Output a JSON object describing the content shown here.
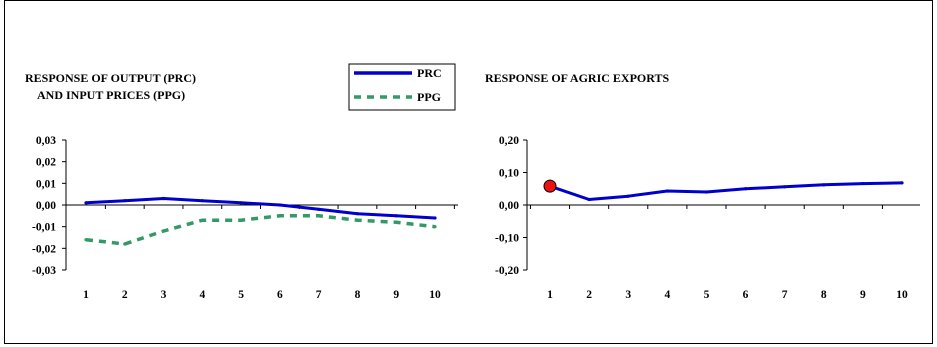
{
  "colors": {
    "prc": "#0000cc",
    "ppg": "#339966",
    "marker_fill": "#ee1111",
    "axis": "#000000"
  },
  "chart_data": [
    {
      "type": "line",
      "title_lines": [
        "RESPONSE OF OUTPUT (PRC)",
        "AND INPUT PRICES (PPG)"
      ],
      "categories": [
        "1",
        "2",
        "3",
        "4",
        "5",
        "6",
        "7",
        "8",
        "9",
        "10"
      ],
      "ylim": [
        -0.03,
        0.03
      ],
      "yticks": [
        0.03,
        0.02,
        0.01,
        0.0,
        -0.01,
        -0.02,
        -0.03
      ],
      "ytick_labels": [
        "0,03",
        "0,02",
        "0,01",
        "0,00",
        "-0,01",
        "-0,02",
        "-0,03"
      ],
      "legend": {
        "placement": "top-right",
        "entries": [
          "PRC",
          "PPG"
        ]
      },
      "series": [
        {
          "name": "PRC",
          "style": "solid",
          "values": [
            0.001,
            0.002,
            0.003,
            0.002,
            0.001,
            0.0,
            -0.002,
            -0.004,
            -0.005,
            -0.006
          ]
        },
        {
          "name": "PPG",
          "style": "dashed",
          "values": [
            -0.016,
            -0.018,
            -0.012,
            -0.007,
            -0.007,
            -0.005,
            -0.005,
            -0.007,
            -0.008,
            -0.01
          ]
        }
      ]
    },
    {
      "type": "line",
      "title_lines": [
        "RESPONSE OF AGRIC EXPORTS"
      ],
      "categories": [
        "1",
        "2",
        "3",
        "4",
        "5",
        "6",
        "7",
        "8",
        "9",
        "10"
      ],
      "ylim": [
        -0.2,
        0.2
      ],
      "yticks": [
        0.2,
        0.1,
        0.0,
        -0.1,
        -0.2
      ],
      "ytick_labels": [
        "0,20",
        "0,10",
        "0,00",
        "-0,10",
        "-0,20"
      ],
      "series": [
        {
          "style": "solid",
          "marker_first_point": true,
          "values": [
            0.058,
            0.017,
            0.027,
            0.043,
            0.04,
            0.05,
            0.056,
            0.062,
            0.066,
            0.068
          ]
        }
      ]
    }
  ]
}
